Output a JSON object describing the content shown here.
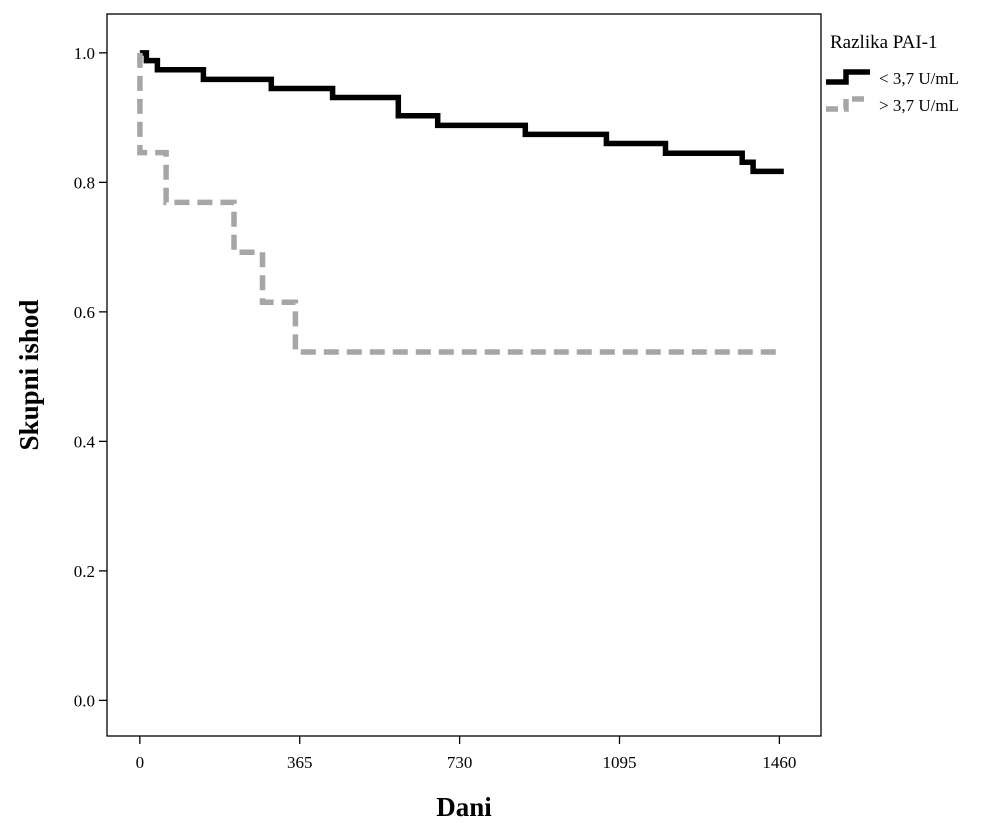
{
  "chart_data": {
    "type": "line",
    "xlabel": "Dani",
    "ylabel": "Skupni ishod",
    "xlim": [
      -75,
      1555
    ],
    "ylim": [
      -0.055,
      1.06
    ],
    "xticks": [
      0,
      365,
      730,
      1095,
      1460
    ],
    "yticks": [
      0.0,
      0.2,
      0.4,
      0.6,
      0.8,
      1.0
    ],
    "ytick_labels": [
      "0.0",
      "0.2",
      "0.4",
      "0.6",
      "0.8",
      "1.0"
    ],
    "grid": false,
    "legend": {
      "title": "Razlika PAI-1",
      "placement": "outside-right-top"
    },
    "series": [
      {
        "name": "< 3,7 U/mL",
        "color": "#000000",
        "style": "solid",
        "points": [
          [
            0,
            1.0
          ],
          [
            15,
            1.0
          ],
          [
            15,
            0.988
          ],
          [
            40,
            0.988
          ],
          [
            40,
            0.974
          ],
          [
            145,
            0.974
          ],
          [
            145,
            0.959
          ],
          [
            300,
            0.959
          ],
          [
            300,
            0.945
          ],
          [
            440,
            0.945
          ],
          [
            440,
            0.931
          ],
          [
            590,
            0.931
          ],
          [
            590,
            0.903
          ],
          [
            680,
            0.903
          ],
          [
            680,
            0.888
          ],
          [
            880,
            0.888
          ],
          [
            880,
            0.874
          ],
          [
            1065,
            0.874
          ],
          [
            1065,
            0.86
          ],
          [
            1200,
            0.86
          ],
          [
            1200,
            0.845
          ],
          [
            1375,
            0.845
          ],
          [
            1375,
            0.831
          ],
          [
            1400,
            0.831
          ],
          [
            1400,
            0.817
          ],
          [
            1470,
            0.817
          ]
        ]
      },
      {
        "name": "> 3,7 U/mL",
        "color": "#a6a6a6",
        "style": "dashed",
        "points": [
          [
            0,
            1.0
          ],
          [
            0,
            0.846
          ],
          [
            60,
            0.846
          ],
          [
            60,
            0.769
          ],
          [
            215,
            0.769
          ],
          [
            215,
            0.692
          ],
          [
            280,
            0.692
          ],
          [
            280,
            0.615
          ],
          [
            355,
            0.615
          ],
          [
            355,
            0.538
          ],
          [
            1470,
            0.538
          ]
        ]
      }
    ]
  }
}
